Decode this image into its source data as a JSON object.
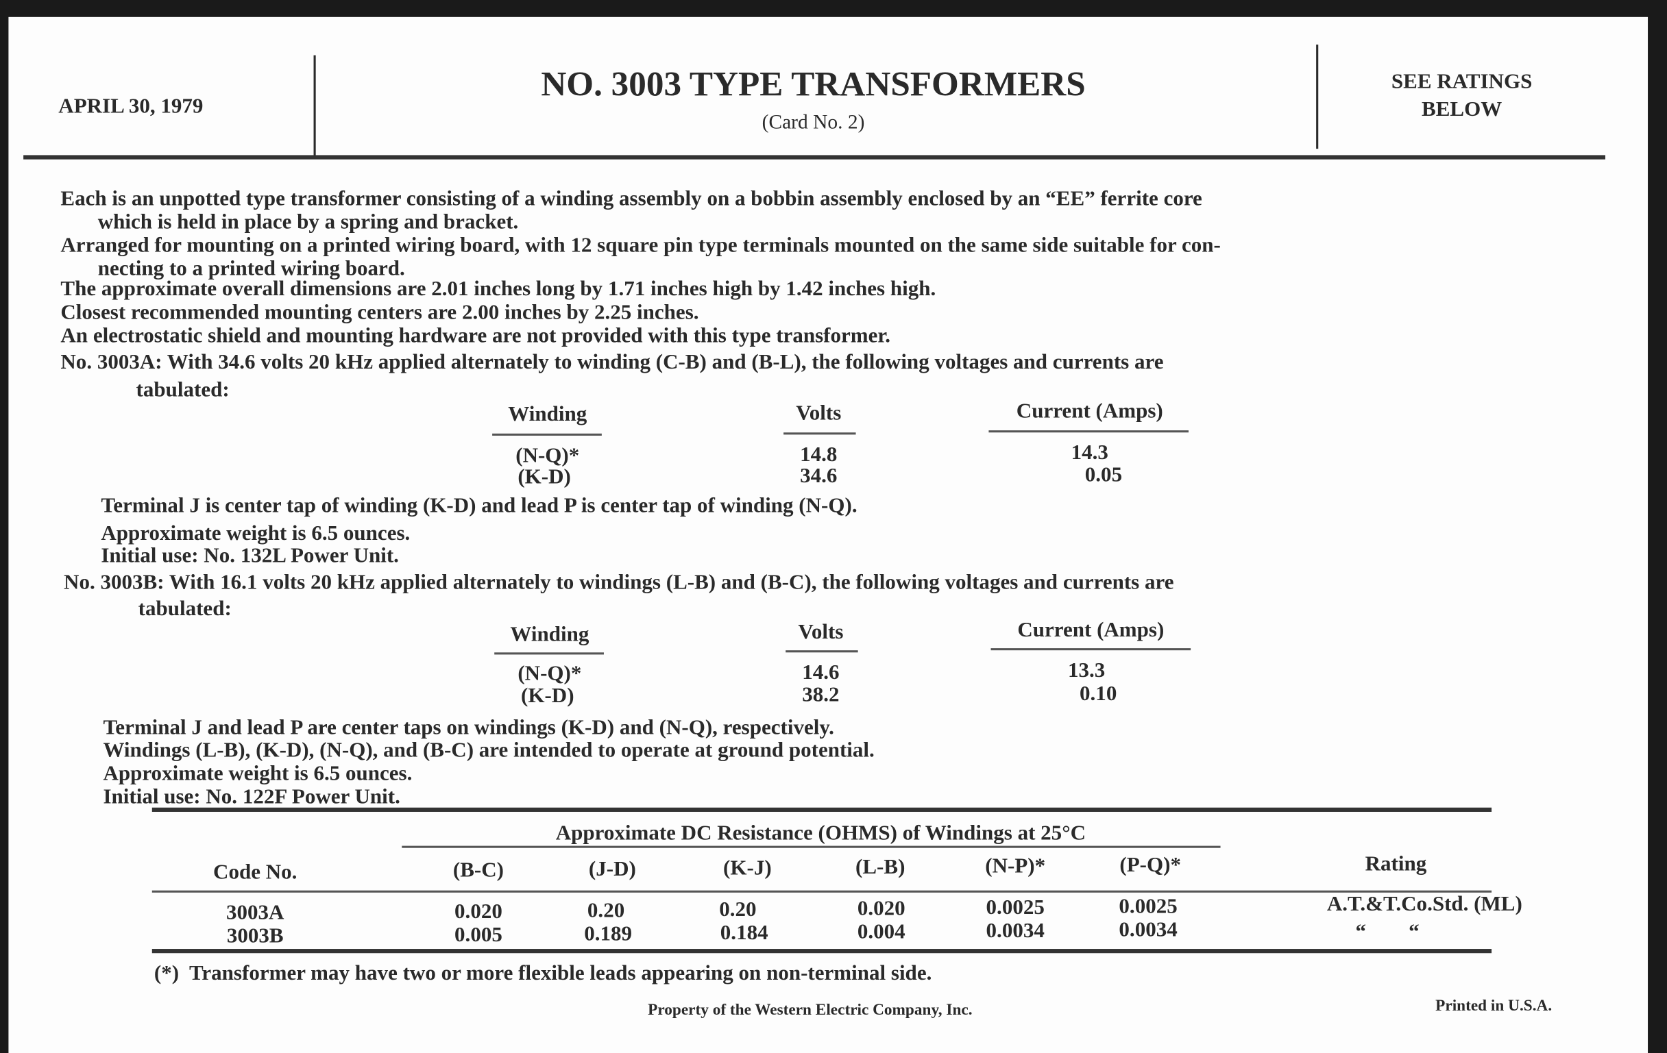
{
  "header": {
    "date": "APRIL 30, 1979",
    "title": "NO. 3003 TYPE TRANSFORMERS",
    "subtitle": "(Card No. 2)",
    "ratings_note": [
      "SEE RATINGS",
      "BELOW"
    ]
  },
  "intro": [
    "Each is an unpotted type transformer consisting of a winding assembly on a bobbin assembly enclosed by an “EE” ferrite core",
    "which is held in place by a spring and bracket.",
    "Arranged for mounting on a printed wiring board, with 12 square pin type terminals mounted on the same side suitable for con-",
    "necting to a printed wiring board.",
    "The approximate overall dimensions are 2.01 inches long by 1.71 inches high by 1.42 inches high.",
    "Closest recommended mounting centers are 2.00 inches by 2.25 inches.",
    "An electrostatic shield and mounting hardware are not provided with this type transformer."
  ],
  "a": {
    "lead": "No. 3003A:  With 34.6 volts 20 kHz applied alternately to winding (C-B) and (B-L), the following voltages and currents are",
    "lead2": "tabulated:",
    "headers": [
      "Winding",
      "Volts",
      "Current (Amps)"
    ],
    "rows": [
      [
        "(N-Q)*",
        "14.8",
        "14.3"
      ],
      [
        "(K-D)",
        "34.6",
        "0.05"
      ]
    ],
    "notes": [
      "Terminal J is center tap of winding (K-D) and lead P is center tap of winding (N-Q).",
      "Approximate weight is 6.5 ounces.",
      "Initial use: No. 132L Power Unit."
    ]
  },
  "b": {
    "lead": "No. 3003B:  With 16.1 volts 20 kHz applied alternately to windings (L-B) and (B-C), the following voltages and currents are",
    "lead2": "tabulated:",
    "headers": [
      "Winding",
      "Volts",
      "Current (Amps)"
    ],
    "rows": [
      [
        "(N-Q)*",
        "14.6",
        "13.3"
      ],
      [
        "(K-D)",
        "38.2",
        "0.10"
      ]
    ],
    "notes": [
      "Terminal J and lead P are center taps on windings (K-D) and (N-Q), respectively.",
      "Windings (L-B), (K-D), (N-Q), and (B-C) are intended to operate at ground potential.",
      "Approximate weight is 6.5 ounces.",
      "Initial use:  No. 122F Power Unit."
    ]
  },
  "resistance": {
    "group_header": "Approximate DC Resistance (OHMS) of Windings at 25°C",
    "headers": [
      "Code No.",
      "(B-C)",
      "(J-D)",
      "(K-J)",
      "(L-B)",
      "(N-P)*",
      "(P-Q)*",
      "Rating"
    ],
    "rows": [
      [
        "3003A",
        "0.020",
        "0.20",
        "0.20",
        "0.020",
        "0.0025",
        "0.0025",
        "A.T.&T.Co.Std. (ML)"
      ],
      [
        "3003B",
        "0.005",
        "0.189",
        "0.184",
        "0.004",
        "0.0034",
        "0.0034",
        "“        “"
      ]
    ]
  },
  "footnote": "(*)  Transformer may have two or more flexible leads appearing on non-terminal side.",
  "footer": {
    "property": "Property of the Western Electric Company, Inc.",
    "printed": "Printed in U.S.A."
  }
}
